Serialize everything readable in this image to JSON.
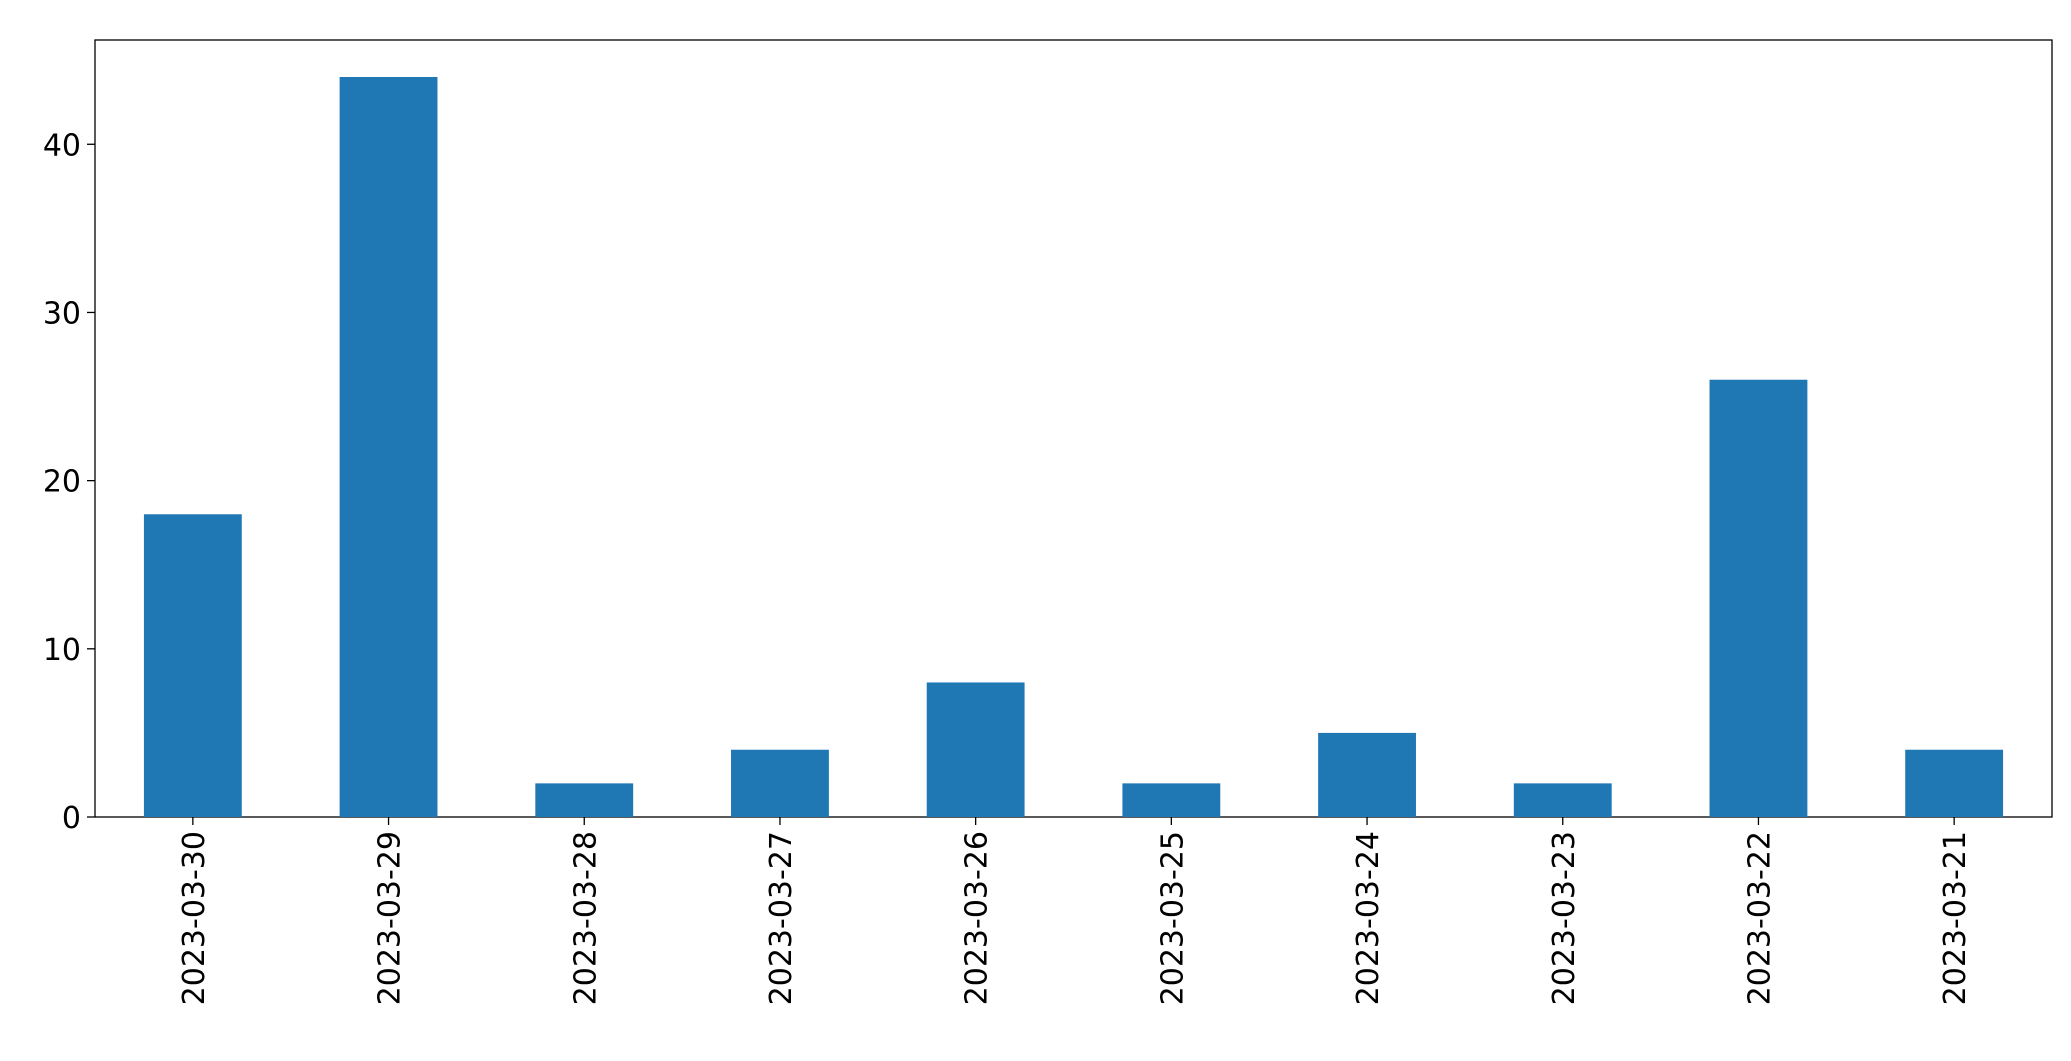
{
  "chart_data": {
    "type": "bar",
    "categories": [
      "2023-03-30",
      "2023-03-29",
      "2023-03-28",
      "2023-03-27",
      "2023-03-26",
      "2023-03-25",
      "2023-03-24",
      "2023-03-23",
      "2023-03-22",
      "2023-03-21"
    ],
    "values": [
      18,
      44,
      2,
      4,
      8,
      2,
      5,
      2,
      26,
      4
    ],
    "color": "#1f77b4",
    "ylim": [
      0,
      46.2
    ],
    "yticks": [
      0,
      10,
      20,
      30,
      40
    ],
    "grid": false
  }
}
